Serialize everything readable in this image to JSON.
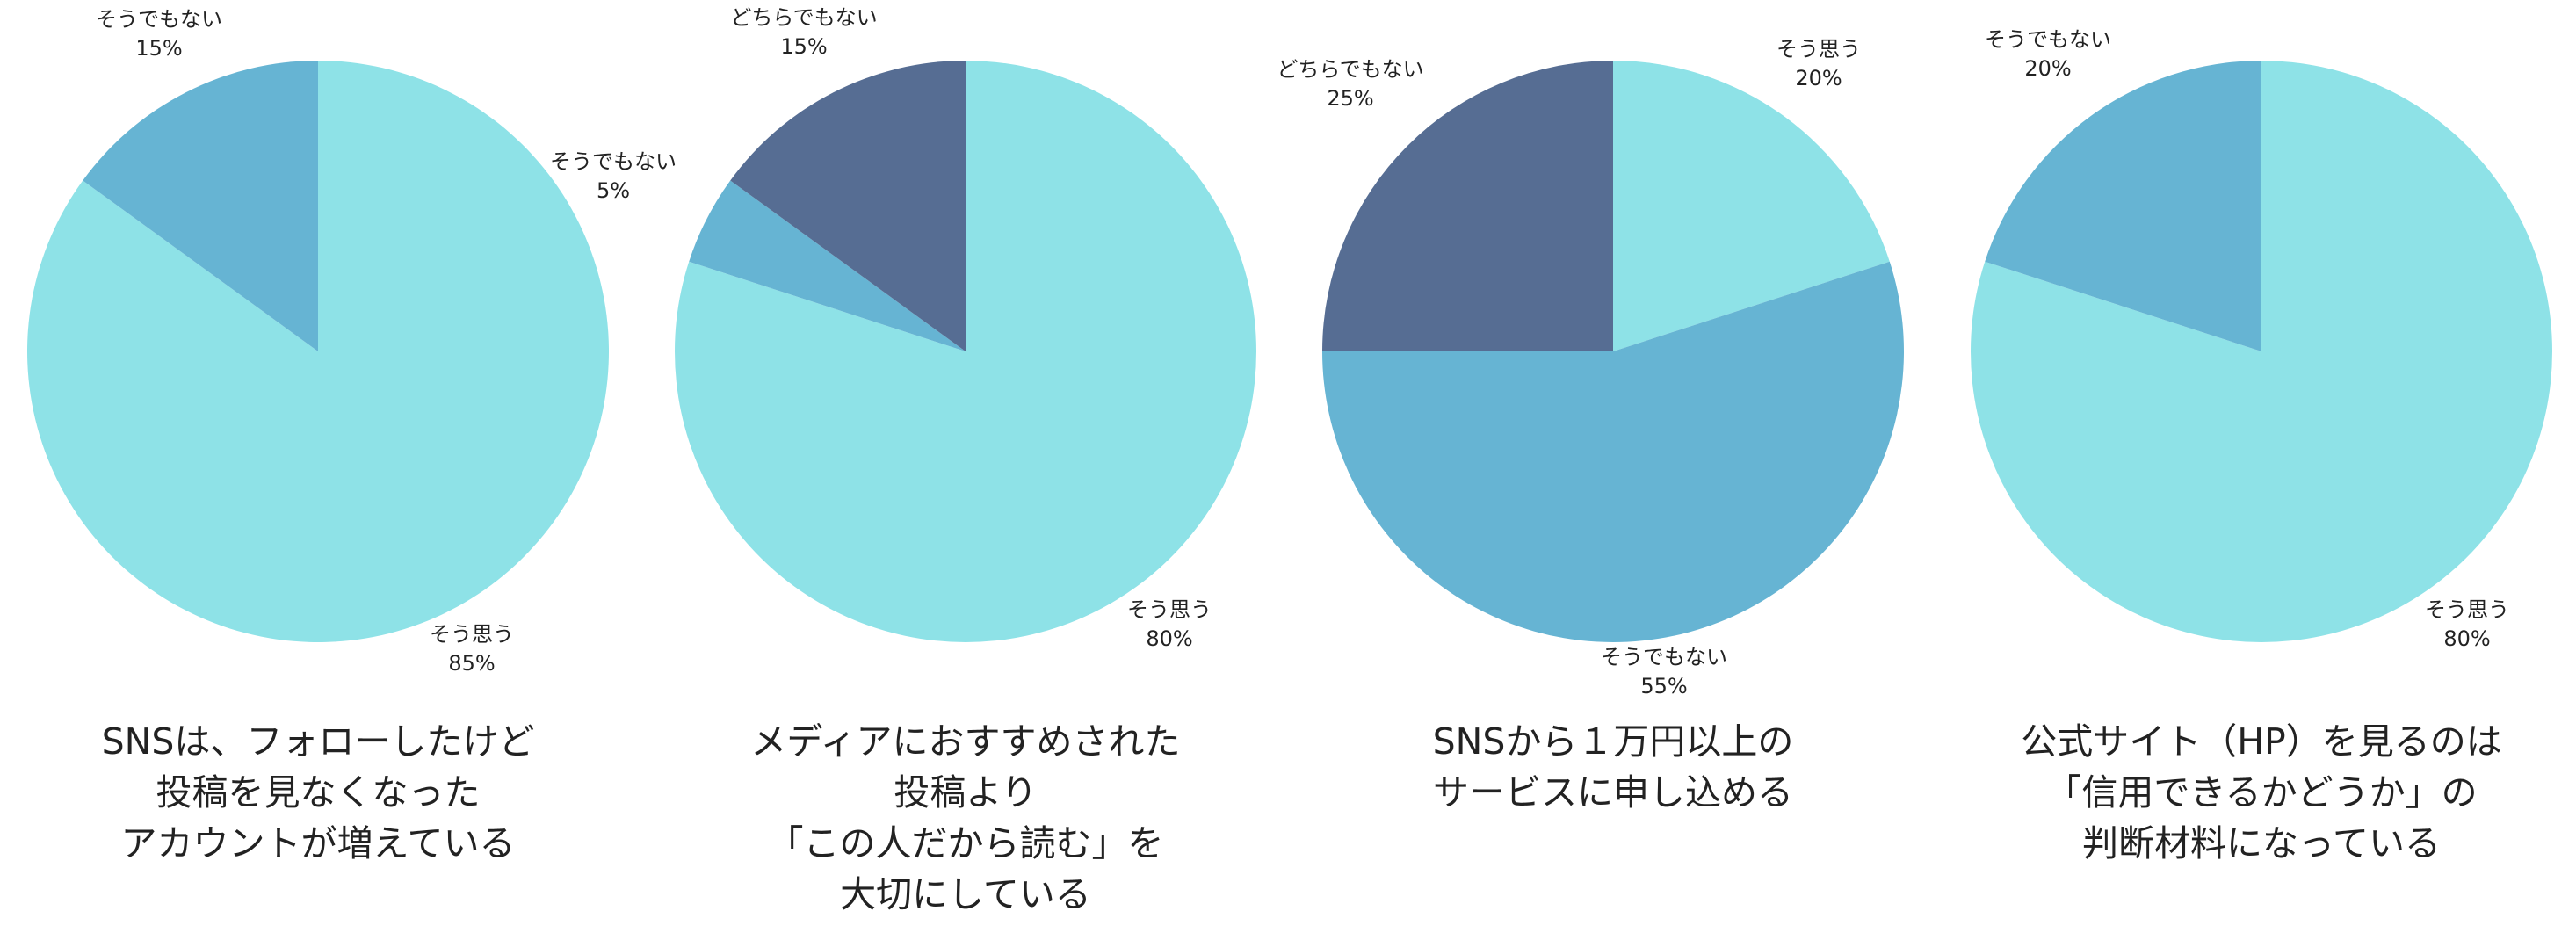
{
  "colors": {
    "agree": "#8EE2E7",
    "disagree": "#66B4D3",
    "neutral": "#566D93"
  },
  "chart_data": [
    {
      "type": "pie",
      "title": "SNSは、フォローしたけど 投稿を見なくなった アカウントが増えている",
      "title_lines": [
        "SNSは、フォローしたけど",
        "投稿を見なくなった",
        "アカウントが増えている"
      ],
      "categories": [
        "そう思う",
        "そうでもない"
      ],
      "values": [
        85,
        15
      ],
      "value_labels": [
        "85%",
        "15%"
      ],
      "slice_colors": [
        "agree",
        "disagree"
      ]
    },
    {
      "type": "pie",
      "title": "メディアにおすすめされた 投稿より 「この人だから読む」を 大切にしている",
      "title_lines": [
        "メディアにおすすめされた",
        "投稿より",
        "「この人だから読む」を",
        "大切にしている"
      ],
      "categories": [
        "そう思う",
        "そうでもない",
        "どちらでもない"
      ],
      "values": [
        80,
        5,
        15
      ],
      "value_labels": [
        "80%",
        "5%",
        "15%"
      ],
      "slice_colors": [
        "agree",
        "disagree",
        "neutral"
      ]
    },
    {
      "type": "pie",
      "title": "SNSから１万円以上の サービスに申し込める",
      "title_lines": [
        "SNSから１万円以上の",
        "サービスに申し込める"
      ],
      "categories": [
        "そう思う",
        "そうでもない",
        "どちらでもない"
      ],
      "values": [
        20,
        55,
        25
      ],
      "value_labels": [
        "20%",
        "55%",
        "25%"
      ],
      "slice_colors": [
        "agree",
        "disagree",
        "neutral"
      ]
    },
    {
      "type": "pie",
      "title": "公式サイト（HP）を見るのは 「信用できるかどうか」の 判断材料になっている",
      "title_lines": [
        "公式サイト（HP）を見るのは",
        "「信用できるかどうか」の",
        "判断材料になっている"
      ],
      "categories": [
        "そう思う",
        "そうでもない"
      ],
      "values": [
        80,
        20
      ],
      "value_labels": [
        "80%",
        "20%"
      ],
      "slice_colors": [
        "agree",
        "disagree"
      ]
    }
  ]
}
